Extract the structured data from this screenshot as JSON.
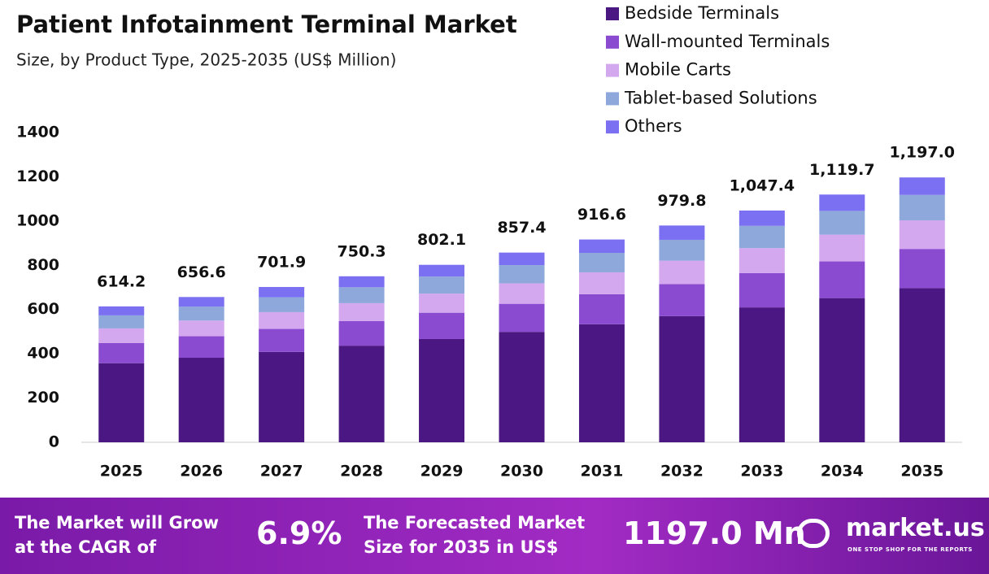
{
  "chart_data": {
    "type": "stacked_bar",
    "title": "Patient Infotainment  Terminal Market",
    "subtitle": "Size, by Product Type, 2025-2035 (US$ Million)",
    "categories": [
      "2025",
      "2026",
      "2027",
      "2028",
      "2029",
      "2030",
      "2031",
      "2032",
      "2033",
      "2034",
      "2035"
    ],
    "series": [
      {
        "name": "Bedside Terminals",
        "color": "#4b1782",
        "values": [
          357.5,
          382.1,
          408.5,
          436.7,
          466.8,
          499.0,
          533.5,
          570.2,
          609.6,
          651.7,
          696.7
        ]
      },
      {
        "name": "Wall-mounted Terminals",
        "color": "#8a4bd0",
        "values": [
          90.9,
          97.2,
          103.9,
          111.0,
          118.7,
          126.9,
          135.7,
          145.0,
          155.0,
          165.7,
          177.2
        ]
      },
      {
        "name": "Mobile Carts",
        "color": "#d3a8ef",
        "values": [
          66.3,
          70.9,
          75.8,
          81.0,
          86.6,
          92.6,
          99.0,
          105.8,
          113.1,
          120.9,
          129.3
        ]
      },
      {
        "name": "Tablet-based Solutions",
        "color": "#8fa8dc",
        "values": [
          59.0,
          63.0,
          67.4,
          72.0,
          77.0,
          82.3,
          88.0,
          94.1,
          100.6,
          107.5,
          114.9
        ]
      },
      {
        "name": "Others",
        "color": "#7b6ff2",
        "values": [
          40.5,
          43.4,
          46.3,
          49.6,
          53.0,
          56.6,
          60.4,
          64.7,
          69.1,
          73.9,
          78.9
        ]
      }
    ],
    "totals": [
      614.2,
      656.6,
      701.9,
      750.3,
      802.1,
      857.4,
      916.6,
      979.8,
      {
        "value": 1047.4,
        "label": "1,047.4"
      },
      {
        "value": 1119.7,
        "label": "1,119.7"
      },
      {
        "value": 1197.0,
        "label": "1,197.0"
      }
    ],
    "ylim": [
      0,
      1400
    ],
    "yticks": [
      0,
      200,
      400,
      600,
      800,
      1000,
      1200,
      1400
    ],
    "grid": false,
    "legend": "top-right"
  },
  "footer": {
    "cagr_text": "The Market will Grow at the CAGR of",
    "cagr": "6.9%",
    "forecast_text": "The Forecasted Market Size for 2035 in US$",
    "forecast": "1197.0 Mn",
    "brand": "market.us",
    "tagline": "ONE STOP SHOP FOR THE REPORTS"
  }
}
